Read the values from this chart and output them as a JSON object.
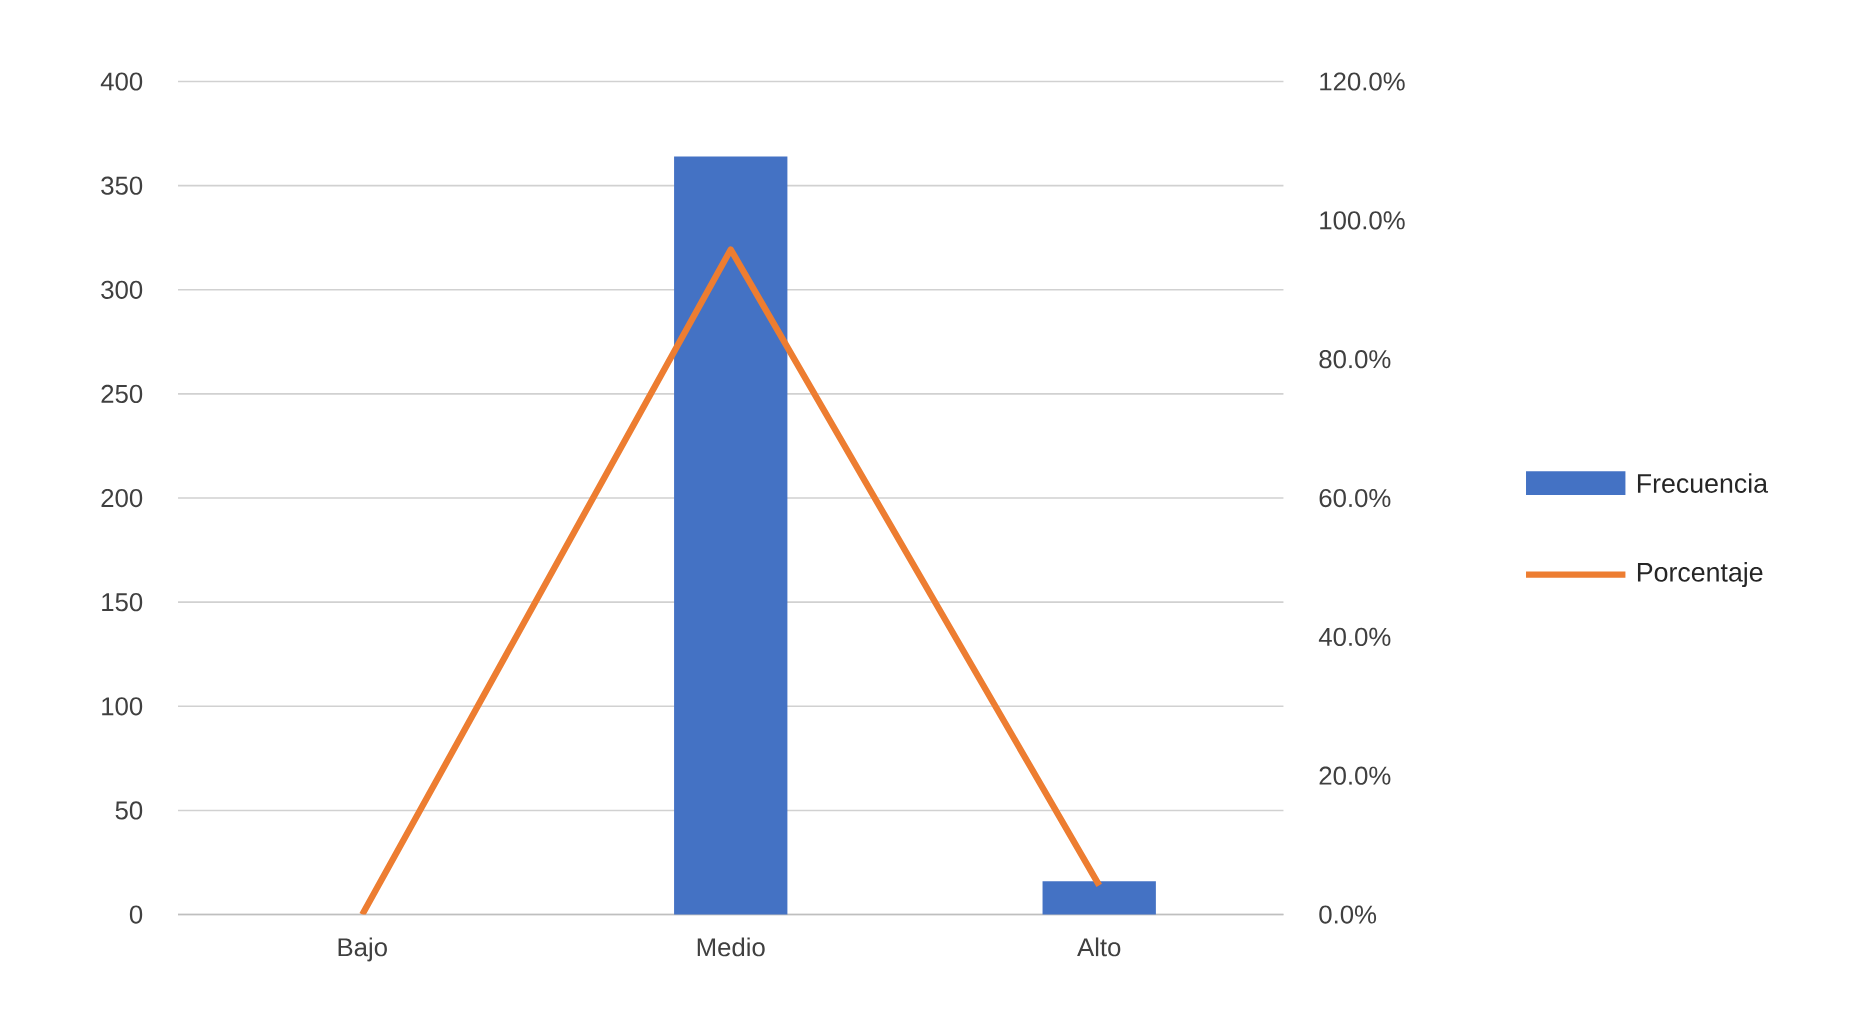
{
  "chart_data": {
    "type": "bar",
    "categories": [
      "Bajo",
      "Medio",
      "Alto"
    ],
    "series": [
      {
        "name": "Frecuencia",
        "color": "#4472c4",
        "values": [
          0,
          364,
          16
        ]
      },
      {
        "name": "Porcentaje",
        "type": "line",
        "axis": "y2",
        "color": "#ed7d31",
        "values": [
          0,
          95.8,
          4.2
        ]
      }
    ],
    "ylim": [
      0,
      400
    ],
    "yticks": [
      0,
      50,
      100,
      150,
      200,
      250,
      300,
      350,
      400
    ],
    "y2lim": [
      0,
      120
    ],
    "y2ticks": [
      {
        "value": 0,
        "label": "0.0%"
      },
      {
        "value": 20,
        "label": "20.0%"
      },
      {
        "value": 40,
        "label": "40.0%"
      },
      {
        "value": 60,
        "label": "60.0%"
      },
      {
        "value": 80,
        "label": "80.0%"
      },
      {
        "value": 100,
        "label": "100.0%"
      },
      {
        "value": 120,
        "label": "120.0%"
      }
    ],
    "grid": "y",
    "legend": "right"
  }
}
